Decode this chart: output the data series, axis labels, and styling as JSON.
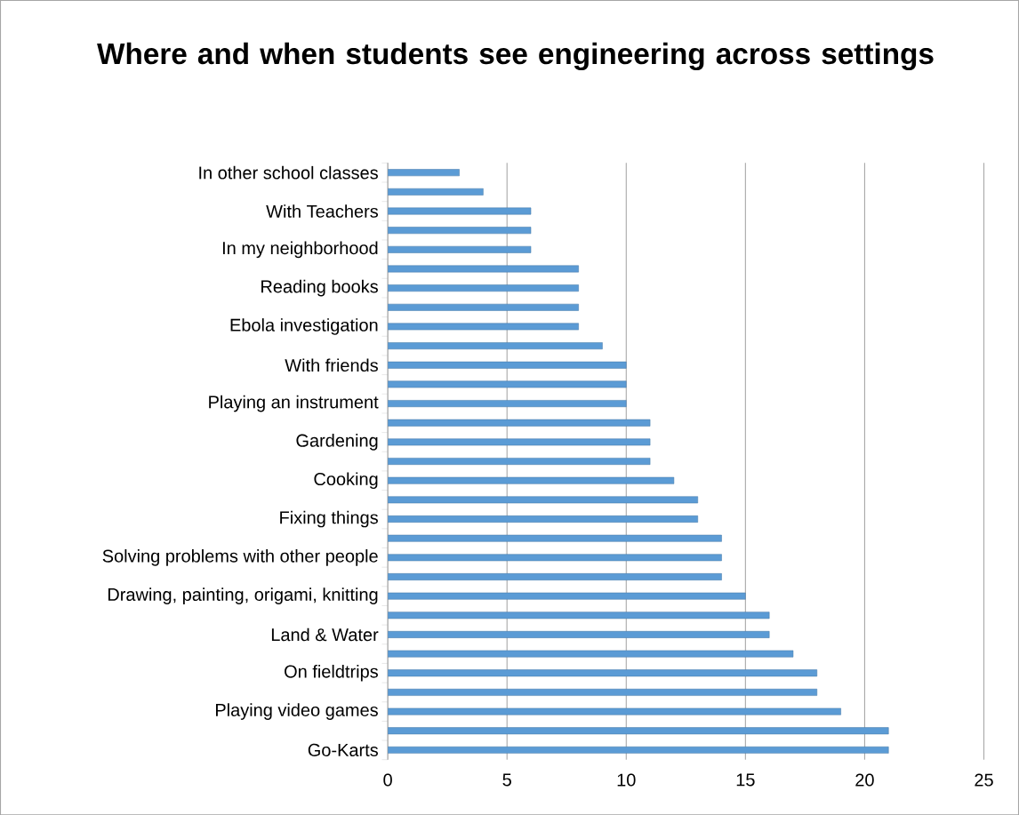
{
  "chart_data": {
    "type": "bar",
    "orientation": "horizontal",
    "title": "Where and when students see engineering across settings",
    "categories": [
      "In other school classes",
      null,
      "With Teachers",
      null,
      "In my neighborhood",
      null,
      "Reading books",
      null,
      "Ebola investigation",
      null,
      "With friends",
      null,
      "Playing an instrument",
      null,
      "Gardening",
      null,
      "Cooking",
      null,
      "Fixing things",
      null,
      "Solving problems with other people",
      null,
      "Drawing, painting, origami, knitting",
      null,
      "Land & Water",
      null,
      "On fieldtrips",
      null,
      "Playing video games",
      null,
      "Go-Karts"
    ],
    "values": [
      3,
      4,
      6,
      6,
      6,
      8,
      8,
      8,
      8,
      9,
      10,
      10,
      10,
      11,
      11,
      11,
      12,
      13,
      13,
      14,
      14,
      14,
      15,
      16,
      16,
      17,
      18,
      18,
      19,
      21,
      21
    ],
    "color": "#5b9bd5",
    "xlim": [
      0,
      25
    ],
    "xticks": [
      0,
      5,
      10,
      15,
      20,
      25
    ],
    "grid": "x"
  }
}
